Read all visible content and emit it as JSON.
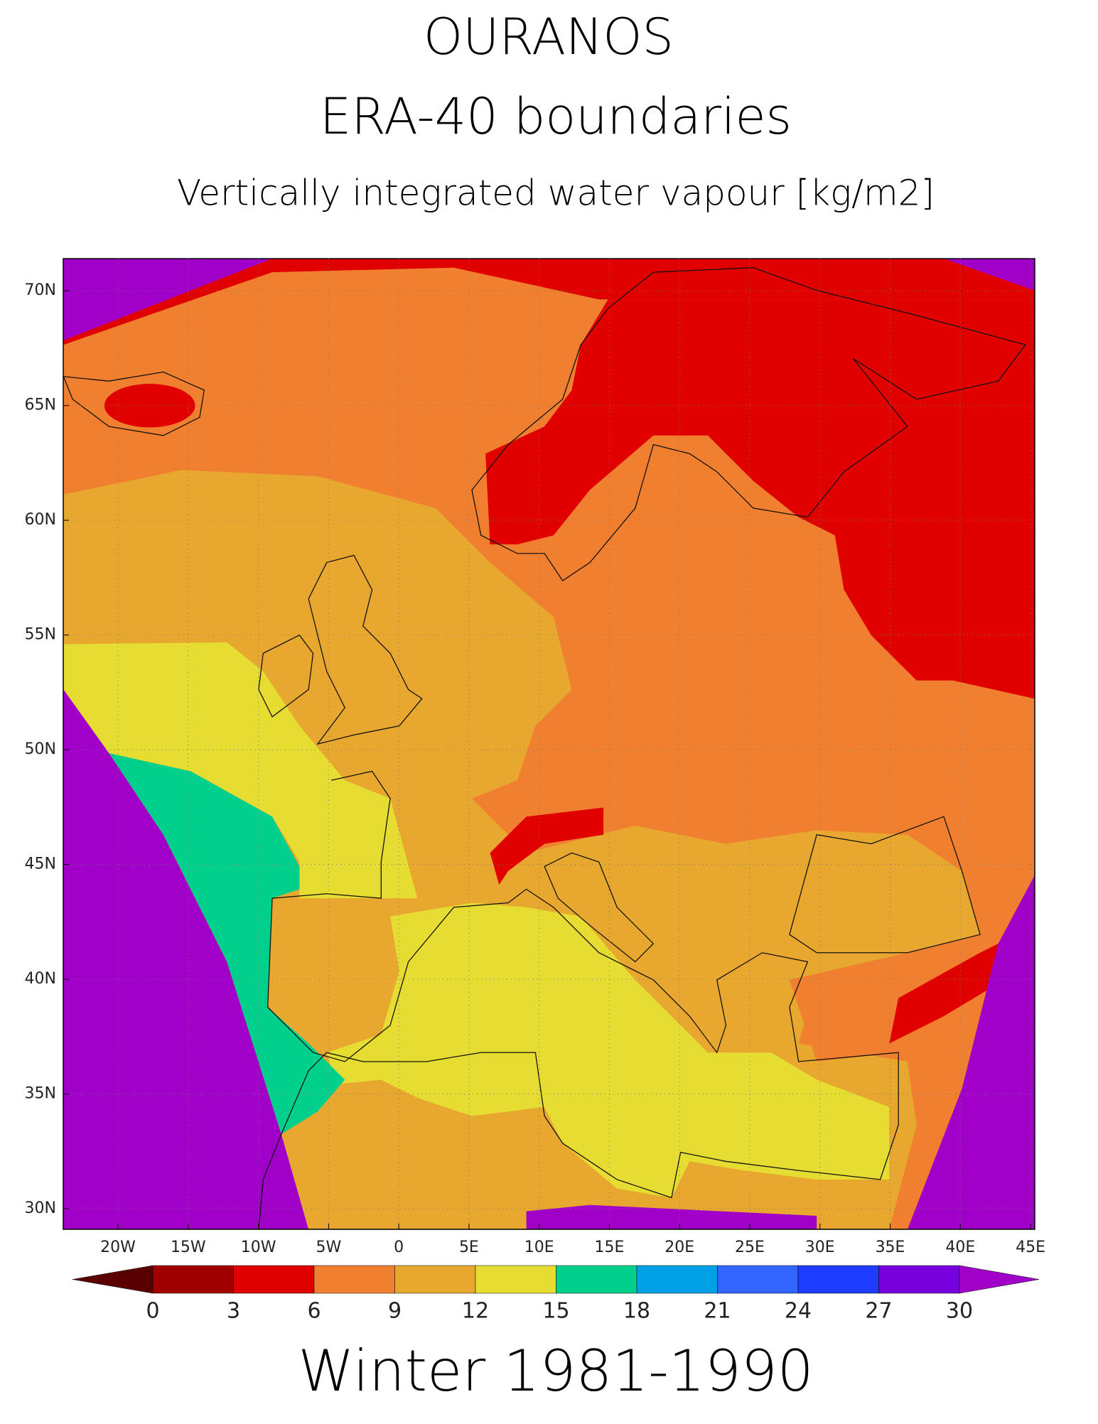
{
  "chart_data": {
    "type": "map",
    "title": "OURANOS",
    "subtitle": [
      "ERA-40 boundaries",
      "Vertically integrated water vapour [kg/m2]"
    ],
    "annotation": "Winter 1981-1990",
    "xlim": [
      -23.9,
      45.3
    ],
    "ylim": [
      29.1,
      71.4
    ],
    "xticks": [
      {
        "value": -20,
        "label": "20W"
      },
      {
        "value": -15,
        "label": "15W"
      },
      {
        "value": -10,
        "label": "10W"
      },
      {
        "value": -5,
        "label": "5W"
      },
      0,
      {
        "value": 5,
        "label": "5E"
      },
      {
        "value": 10,
        "label": "10E"
      },
      {
        "value": 15,
        "label": "15E"
      },
      {
        "value": 20,
        "label": "20E"
      },
      {
        "value": 25,
        "label": "25E"
      },
      {
        "value": 30,
        "label": "30E"
      },
      {
        "value": 35,
        "label": "35E"
      },
      {
        "value": 40,
        "label": "40E"
      },
      {
        "value": 45,
        "label": "45E"
      }
    ],
    "yticks": [
      {
        "value": 30,
        "label": "30N"
      },
      {
        "value": 35,
        "label": "35N"
      },
      {
        "value": 40,
        "label": "40N"
      },
      {
        "value": 45,
        "label": "45N"
      },
      {
        "value": 50,
        "label": "50N"
      },
      {
        "value": 55,
        "label": "55N"
      },
      {
        "value": 60,
        "label": "60N"
      },
      {
        "value": 65,
        "label": "65N"
      },
      {
        "value": 70,
        "label": "70N"
      }
    ],
    "grid": true,
    "colorbar": {
      "levels": [
        0,
        3,
        6,
        9,
        12,
        15,
        18,
        21,
        24,
        27,
        30
      ],
      "colors": [
        "#5a0000",
        "#a00000",
        "#e00000",
        "#f08030",
        "#e8a830",
        "#e6dc32",
        "#00d08c",
        "#00a0e6",
        "#3264ff",
        "#1e3cff",
        "#7800dc",
        "#a000c8"
      ]
    }
  }
}
